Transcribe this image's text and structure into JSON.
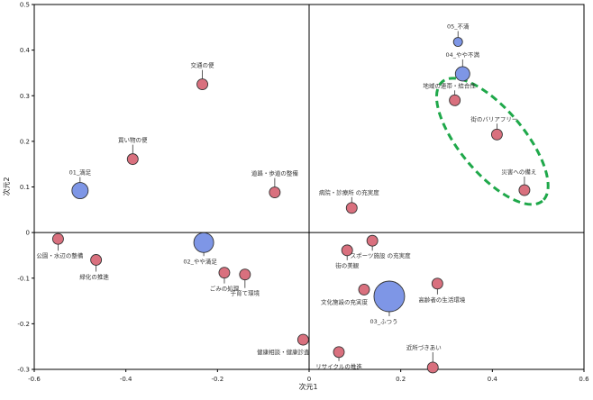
{
  "chart_data": {
    "type": "scatter",
    "title": "",
    "xlabel": "次元1",
    "ylabel": "次元2",
    "xlim": [
      -0.6,
      0.6
    ],
    "ylim": [
      -0.3,
      0.5
    ],
    "x_ticks": [
      -0.6,
      -0.4,
      -0.2,
      0,
      0.2,
      0.4,
      0.6
    ],
    "x_tick_labels": [
      "-0.6",
      "-0.4",
      "-0.2",
      "0",
      "0.2",
      "0.4",
      "0.6"
    ],
    "y_ticks": [
      -0.3,
      -0.2,
      -0.1,
      0,
      0.1,
      0.2,
      0.3,
      0.4,
      0.5
    ],
    "y_tick_labels": [
      "-0.3",
      "-0.2",
      "-0.1",
      "0",
      "0.1",
      "0.2",
      "0.3",
      "0.4",
      "0.5"
    ],
    "grid": false,
    "reference_lines": {
      "x": 0,
      "y": 0
    },
    "colors": {
      "satisfaction": "#7E96E6",
      "item": "#D9707E",
      "outline": "#333333",
      "highlight": "#1FA84A"
    },
    "satisfaction_points": [
      {
        "label": "05_不満",
        "x": 0.325,
        "y": 0.418,
        "size": 1
      },
      {
        "label": "04_やや不満",
        "x": 0.335,
        "y": 0.348,
        "size": 2
      },
      {
        "label": "01_満足",
        "x": -0.5,
        "y": 0.092,
        "size": 3
      },
      {
        "label": "02_やや満足",
        "x": -0.23,
        "y": -0.022,
        "size": 4
      },
      {
        "label": "03_ふつう",
        "x": 0.175,
        "y": -0.14,
        "size": 6
      }
    ],
    "items": [
      {
        "label": "交通の便",
        "x": -0.233,
        "y": 0.325
      },
      {
        "label": "買い物の便",
        "x": -0.385,
        "y": 0.161
      },
      {
        "label": "道路・歩道の整備",
        "x": -0.075,
        "y": 0.088
      },
      {
        "label": "公園・水辺の整備",
        "x": -0.548,
        "y": -0.014
      },
      {
        "label": "緑化の推進",
        "x": -0.465,
        "y": -0.06
      },
      {
        "label": "ごみの処理",
        "x": -0.185,
        "y": -0.088
      },
      {
        "label": "子育て環境",
        "x": -0.14,
        "y": -0.092
      },
      {
        "label": "健康相談・健康診査",
        "x": -0.013,
        "y": -0.235
      },
      {
        "label": "地域の連帯・結合性",
        "x": 0.318,
        "y": 0.29
      },
      {
        "label": "街のバリアフリー",
        "x": 0.41,
        "y": 0.215
      },
      {
        "label": "災害への備え",
        "x": 0.47,
        "y": 0.093
      },
      {
        "label": "病院・診療所 の充実度",
        "x": 0.093,
        "y": 0.054
      },
      {
        "label": "スポーツ施設 の充実度",
        "x": 0.138,
        "y": -0.018
      },
      {
        "label": "街の美観",
        "x": 0.083,
        "y": -0.039
      },
      {
        "label": "文化施設の充実度",
        "x": 0.12,
        "y": -0.125
      },
      {
        "label": "高齢者の生活環境",
        "x": 0.28,
        "y": -0.112
      },
      {
        "label": "リサイクルの推進",
        "x": 0.065,
        "y": -0.262
      },
      {
        "label": "近所づきあい",
        "x": 0.27,
        "y": -0.296
      }
    ],
    "highlight_ellipse": {
      "cx": 0.4,
      "cy": 0.2,
      "rx": 0.17,
      "ry": 0.07,
      "angle_deg": -50
    }
  }
}
